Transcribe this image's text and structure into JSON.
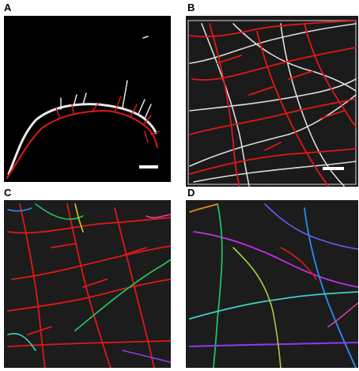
{
  "panels": {
    "a": {
      "label": "A"
    },
    "b": {
      "label": "B"
    },
    "c": {
      "label": "C"
    },
    "d": {
      "label": "D"
    }
  },
  "colors": {
    "trace_red": "#e01818",
    "neurite_white": "#e6e6e6",
    "background_dark": "#1a1a1a",
    "segment_palette": [
      "#e01818",
      "#22c060",
      "#2a8cf0",
      "#c030e0",
      "#8a3cf0",
      "#40d0c0",
      "#e08a20",
      "#a0d040",
      "#6060f0",
      "#d040a0"
    ]
  },
  "icons": {
    "scale_bar": "scale-bar"
  }
}
